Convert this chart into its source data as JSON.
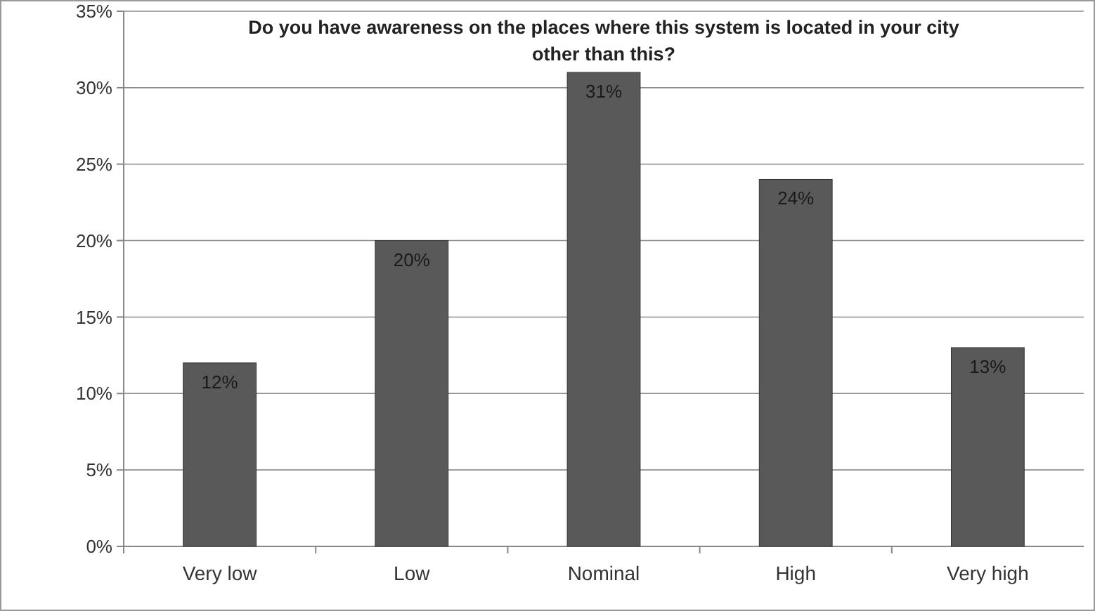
{
  "chart_data": {
    "type": "bar",
    "title": "Do you have awareness on the places where this system is located in your city other than this?",
    "categories": [
      "Very low",
      "Low",
      "Nominal",
      "High",
      "Very high"
    ],
    "values": [
      12,
      20,
      31,
      24,
      13
    ],
    "value_labels": [
      "12%",
      "20%",
      "31%",
      "24%",
      "13%"
    ],
    "color": "#595959",
    "ylim": [
      0,
      35
    ],
    "yticks": [
      {
        "value": 0,
        "label": "0%"
      },
      {
        "value": 5,
        "label": "5%"
      },
      {
        "value": 10,
        "label": "10%"
      },
      {
        "value": 15,
        "label": "15%"
      },
      {
        "value": 20,
        "label": "20%"
      },
      {
        "value": 25,
        "label": "25%"
      },
      {
        "value": 30,
        "label": "30%"
      },
      {
        "value": 35,
        "label": "35%"
      }
    ],
    "grid": "y"
  }
}
